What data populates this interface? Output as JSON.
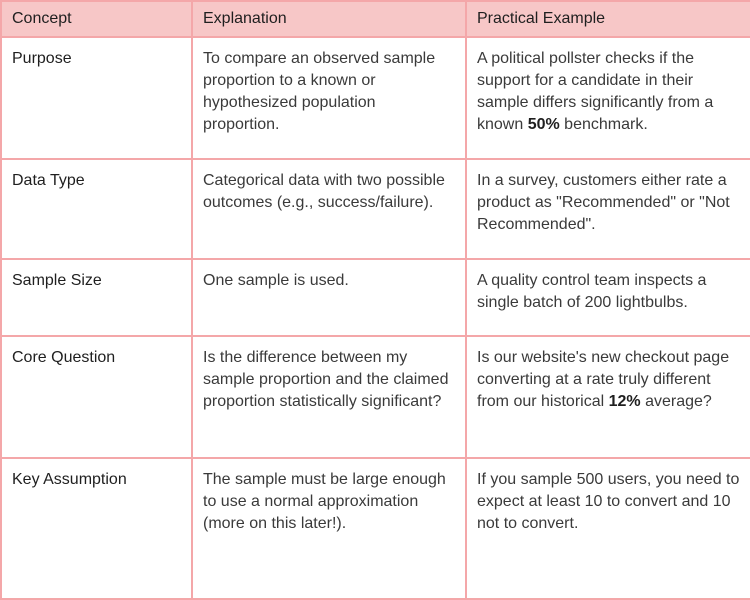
{
  "table": {
    "headers": [
      "Concept",
      "Explanation",
      "Practical Example"
    ],
    "rows": [
      {
        "concept": "Purpose",
        "explanation": "To compare an observed sample proportion to a known or hypothesized population proportion.",
        "example_before": "A political pollster checks if the support for a candidate in their sample differs significantly from a known ",
        "example_bold": "50%",
        "example_after": " benchmark."
      },
      {
        "concept": "Data Type",
        "explanation": "Categorical data with two possible outcomes (e.g., success/failure).",
        "example_before": "In a survey, customers either rate a product as \"Recommended\" or \"Not Recommended\".",
        "example_bold": "",
        "example_after": ""
      },
      {
        "concept": "Sample Size",
        "explanation": "One sample is used.",
        "example_before": "A quality control team inspects a single batch of 200 lightbulbs.",
        "example_bold": "",
        "example_after": ""
      },
      {
        "concept": "Core Question",
        "explanation": "Is the difference between my sample proportion and the claimed proportion statistically significant?",
        "example_before": "Is our website's new checkout page converting at a rate truly different from our historical ",
        "example_bold": "12%",
        "example_after": " average?"
      },
      {
        "concept": "Key Assumption",
        "explanation": "The sample must be large enough to use a normal approximation (more on this later!).",
        "example_before": "If you sample 500 users, you need to expect at least 10 to convert and 10 not to convert.",
        "example_bold": "",
        "example_after": ""
      }
    ]
  },
  "colors": {
    "header_bg": "#f7c7c7",
    "border": "#f4a7a9"
  }
}
